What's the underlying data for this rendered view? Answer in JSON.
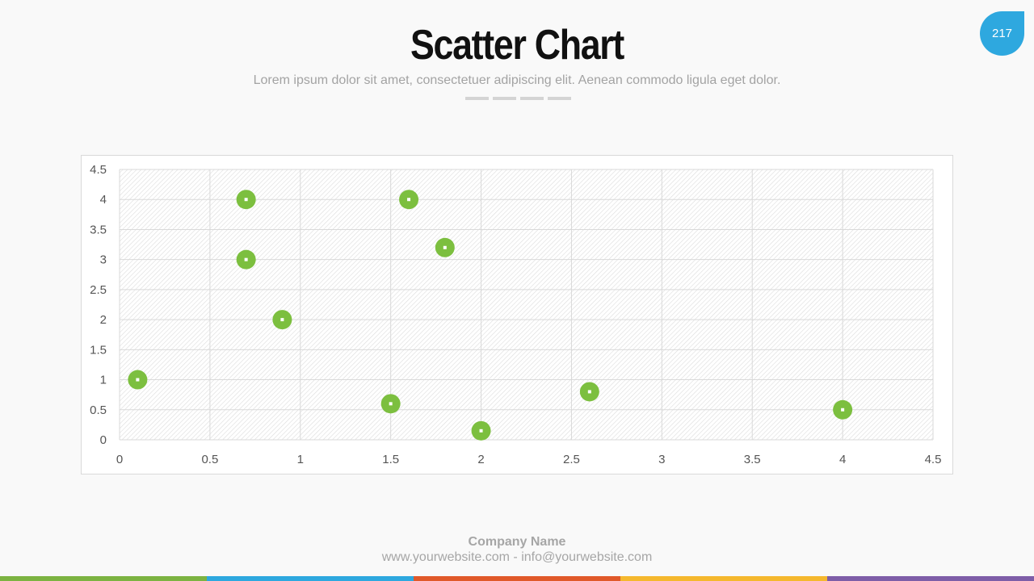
{
  "slide": {
    "title": "Scatter Chart",
    "subtitle": "Lorem ipsum dolor sit amet, consectetuer adipiscing elit. Aenean commodo ligula eget dolor.",
    "page_number": "217",
    "accent_color": "#2ea8df"
  },
  "footer": {
    "company": "Company Name",
    "contact": "www.yourwebsite.com - info@yourwebsite.com",
    "stripe_colors": [
      "#7cb342",
      "#2ea8df",
      "#e0592a",
      "#f5b82e",
      "#7e5ea8"
    ]
  },
  "chart_data": {
    "type": "scatter",
    "title": "",
    "xlabel": "",
    "ylabel": "",
    "xlim": [
      0,
      4.5
    ],
    "ylim": [
      0,
      4.5
    ],
    "xticks": [
      "0",
      "0.5",
      "1",
      "1.5",
      "2",
      "2.5",
      "3",
      "3.5",
      "4",
      "4.5"
    ],
    "yticks": [
      "0",
      "0.5",
      "1",
      "1.5",
      "2",
      "2.5",
      "3",
      "3.5",
      "4",
      "4.5"
    ],
    "grid": true,
    "marker_color": "#7cbf3f",
    "points": [
      {
        "x": 0.1,
        "y": 1.0
      },
      {
        "x": 0.7,
        "y": 4.0
      },
      {
        "x": 0.7,
        "y": 3.0
      },
      {
        "x": 0.9,
        "y": 2.0
      },
      {
        "x": 1.5,
        "y": 0.6
      },
      {
        "x": 1.6,
        "y": 4.0
      },
      {
        "x": 1.8,
        "y": 3.2
      },
      {
        "x": 2.0,
        "y": 0.15
      },
      {
        "x": 2.6,
        "y": 0.8
      },
      {
        "x": 4.0,
        "y": 0.5
      }
    ]
  }
}
